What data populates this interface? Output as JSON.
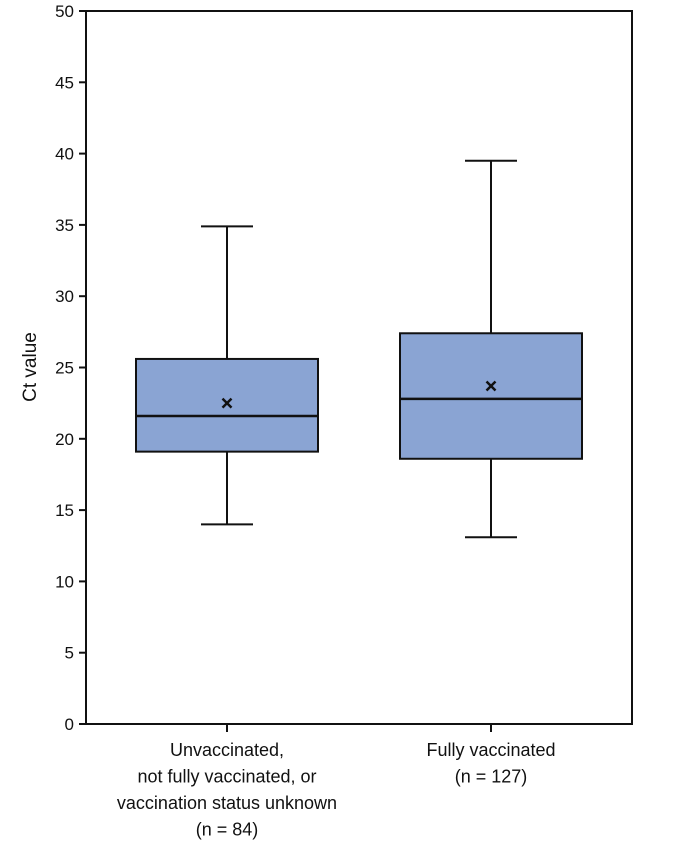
{
  "chart_data": {
    "type": "box",
    "ylabel": "Ct  value",
    "ylim": [
      0,
      50
    ],
    "yticks": [
      0,
      5,
      10,
      15,
      20,
      25,
      30,
      35,
      40,
      45,
      50
    ],
    "box_color": "#8aa4d3",
    "line_color": "#111111",
    "groups": [
      {
        "label_lines": [
          "Unvaccinated,",
          "not fully vaccinated, or",
          "vaccination status unknown",
          "(n = 84)"
        ],
        "whisker_low": 14.0,
        "q1": 19.1,
        "median": 21.6,
        "q3": 25.6,
        "whisker_high": 34.9,
        "mean": 22.5
      },
      {
        "label_lines": [
          "Fully vaccinated",
          "(n = 127)"
        ],
        "whisker_low": 13.1,
        "q1": 18.6,
        "median": 22.8,
        "q3": 27.4,
        "whisker_high": 39.5,
        "mean": 23.7
      }
    ]
  }
}
